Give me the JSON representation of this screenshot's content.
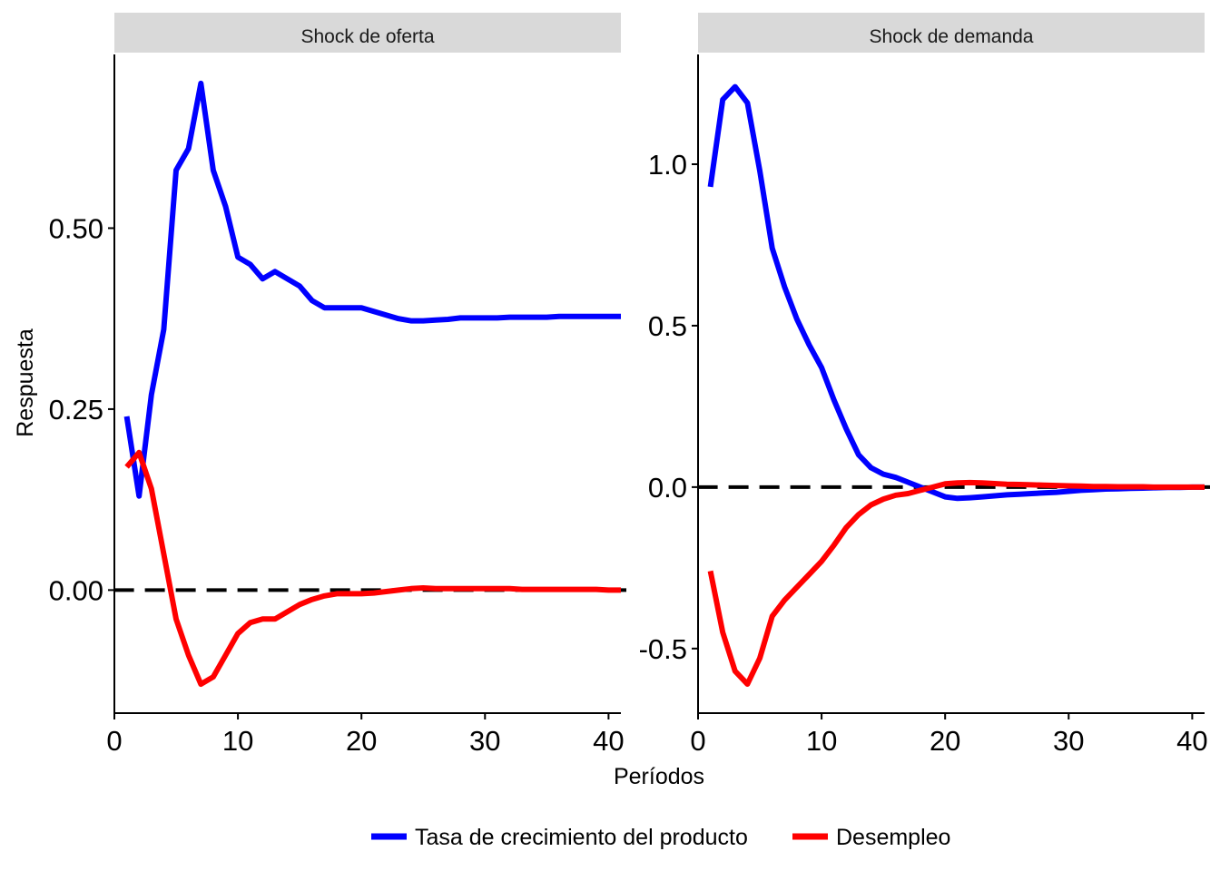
{
  "chart_data": {
    "type": "line",
    "xlabel": "Períodos",
    "ylabel": "Respuesta",
    "legend_position": "bottom",
    "series_styles": [
      {
        "name": "Tasa de crecimiento del producto",
        "color": "#0000ff"
      },
      {
        "name": "Desempleo",
        "color": "#ff0000"
      }
    ],
    "reference_line": {
      "y": 0,
      "style": "dashed",
      "color": "#000000"
    },
    "panels": [
      {
        "title": "Shock de oferta",
        "xlim": [
          0,
          41
        ],
        "ylim": [
          -0.17,
          0.74
        ],
        "xticks": [
          0,
          10,
          20,
          30,
          40
        ],
        "xtick_labels": [
          "0",
          "10",
          "20",
          "30",
          "40"
        ],
        "yticks": [
          0,
          0.25,
          0.5
        ],
        "ytick_labels": [
          "0.00",
          "0.25",
          "0.50"
        ],
        "x": [
          1,
          2,
          3,
          4,
          5,
          6,
          7,
          8,
          9,
          10,
          11,
          12,
          13,
          14,
          15,
          16,
          17,
          18,
          19,
          20,
          21,
          22,
          23,
          24,
          25,
          26,
          27,
          28,
          29,
          30,
          31,
          32,
          33,
          34,
          35,
          36,
          37,
          38,
          39,
          40,
          41
        ],
        "series": [
          {
            "name": "Tasa de crecimiento del producto",
            "values": [
              0.24,
              0.13,
              0.27,
              0.36,
              0.58,
              0.61,
              0.7,
              0.58,
              0.53,
              0.46,
              0.45,
              0.43,
              0.44,
              0.43,
              0.42,
              0.4,
              0.39,
              0.39,
              0.39,
              0.39,
              0.385,
              0.38,
              0.375,
              0.372,
              0.372,
              0.373,
              0.374,
              0.376,
              0.376,
              0.376,
              0.376,
              0.377,
              0.377,
              0.377,
              0.377,
              0.378,
              0.378,
              0.378,
              0.378,
              0.378,
              0.378
            ]
          },
          {
            "name": "Desempleo",
            "values": [
              0.17,
              0.19,
              0.14,
              0.05,
              -0.04,
              -0.09,
              -0.13,
              -0.12,
              -0.09,
              -0.06,
              -0.045,
              -0.04,
              -0.04,
              -0.03,
              -0.02,
              -0.013,
              -0.008,
              -0.005,
              -0.005,
              -0.005,
              -0.004,
              -0.002,
              0.0,
              0.002,
              0.003,
              0.002,
              0.002,
              0.002,
              0.002,
              0.002,
              0.002,
              0.002,
              0.001,
              0.001,
              0.001,
              0.001,
              0.001,
              0.001,
              0.001,
              0.0,
              0.0
            ]
          }
        ]
      },
      {
        "title": "Shock de demanda",
        "xlim": [
          0,
          41
        ],
        "ylim": [
          -0.7,
          1.34
        ],
        "xticks": [
          0,
          10,
          20,
          30,
          40
        ],
        "xtick_labels": [
          "0",
          "10",
          "20",
          "30",
          "40"
        ],
        "yticks": [
          -0.5,
          0,
          0.5,
          1.0
        ],
        "ytick_labels": [
          "-0.5",
          "0.0",
          "0.5",
          "1.0"
        ],
        "x": [
          1,
          2,
          3,
          4,
          5,
          6,
          7,
          8,
          9,
          10,
          11,
          12,
          13,
          14,
          15,
          16,
          17,
          18,
          19,
          20,
          21,
          22,
          23,
          24,
          25,
          26,
          27,
          28,
          29,
          30,
          31,
          32,
          33,
          34,
          35,
          36,
          37,
          38,
          39,
          40,
          41
        ],
        "series": [
          {
            "name": "Tasa de crecimiento del producto",
            "values": [
              0.93,
              1.2,
              1.24,
              1.19,
              0.98,
              0.74,
              0.62,
              0.52,
              0.44,
              0.37,
              0.27,
              0.18,
              0.1,
              0.06,
              0.04,
              0.03,
              0.015,
              0.0,
              -0.015,
              -0.03,
              -0.035,
              -0.033,
              -0.03,
              -0.027,
              -0.024,
              -0.022,
              -0.02,
              -0.018,
              -0.016,
              -0.013,
              -0.01,
              -0.008,
              -0.006,
              -0.005,
              -0.004,
              -0.003,
              -0.002,
              -0.001,
              -0.001,
              0.0,
              0.0
            ]
          },
          {
            "name": "Desempleo",
            "values": [
              -0.26,
              -0.45,
              -0.57,
              -0.61,
              -0.53,
              -0.4,
              -0.35,
              -0.31,
              -0.27,
              -0.23,
              -0.18,
              -0.125,
              -0.085,
              -0.055,
              -0.037,
              -0.025,
              -0.02,
              -0.01,
              0.0,
              0.01,
              0.013,
              0.014,
              0.013,
              0.011,
              0.009,
              0.008,
              0.007,
              0.006,
              0.005,
              0.004,
              0.003,
              0.002,
              0.002,
              0.001,
              0.001,
              0.001,
              0.0,
              0.0,
              0.0,
              0.0,
              0.0
            ]
          }
        ]
      }
    ]
  }
}
